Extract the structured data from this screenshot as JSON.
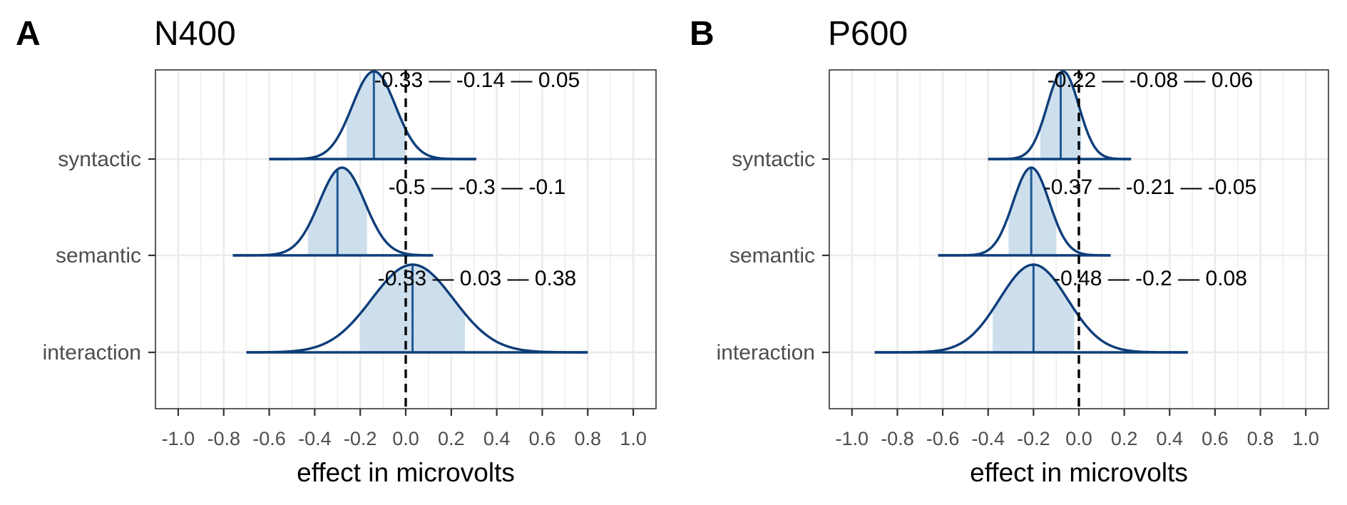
{
  "chart_data": [
    {
      "type": "area",
      "panel_label": "A",
      "title": "N400",
      "xlabel": "effect in microvolts",
      "ylabel": "",
      "xlim": [
        -1.1,
        1.1
      ],
      "x_ticks": [
        -1.0,
        -0.8,
        -0.6,
        -0.4,
        -0.2,
        0.0,
        0.2,
        0.4,
        0.6,
        0.8,
        1.0
      ],
      "x_tick_labels": [
        "-1.0",
        "-0.8",
        "-0.6",
        "-0.4",
        "-0.2",
        "0.0",
        "0.2",
        "0.4",
        "0.6",
        "0.8",
        "1.0"
      ],
      "categories": [
        "syntactic",
        "semantic",
        "interaction"
      ],
      "reference_line_x": 0,
      "grid": true,
      "series": [
        {
          "category": "syntactic",
          "median": -0.14,
          "ci_low": -0.26,
          "ci_high": 0.0,
          "range": [
            -0.6,
            0.31
          ],
          "sd": 0.095,
          "peak": -0.14,
          "annotation": "-0.33 — -0.14 — 0.05"
        },
        {
          "category": "semantic",
          "median": -0.3,
          "ci_low": -0.43,
          "ci_high": -0.17,
          "range": [
            -0.76,
            0.12
          ],
          "sd": 0.1,
          "peak": -0.28,
          "annotation": "-0.5 — -0.3 — -0.1"
        },
        {
          "category": "interaction",
          "median": 0.03,
          "ci_low": -0.2,
          "ci_high": 0.26,
          "range": [
            -0.7,
            0.8
          ],
          "sd": 0.18,
          "peak": 0.03,
          "annotation": "-0.33 — 0.03 — 0.38"
        }
      ]
    },
    {
      "type": "area",
      "panel_label": "B",
      "title": "P600",
      "xlabel": "effect in microvolts",
      "ylabel": "",
      "xlim": [
        -1.1,
        1.1
      ],
      "x_ticks": [
        -1.0,
        -0.8,
        -0.6,
        -0.4,
        -0.2,
        0.0,
        0.2,
        0.4,
        0.6,
        0.8,
        1.0
      ],
      "x_tick_labels": [
        "-1.0",
        "-0.8",
        "-0.6",
        "-0.4",
        "-0.2",
        "0.0",
        "0.2",
        "0.4",
        "0.6",
        "0.8",
        "1.0"
      ],
      "categories": [
        "syntactic",
        "semantic",
        "interaction"
      ],
      "reference_line_x": 0,
      "grid": true,
      "series": [
        {
          "category": "syntactic",
          "median": -0.08,
          "ci_low": -0.17,
          "ci_high": 0.01,
          "range": [
            -0.4,
            0.23
          ],
          "sd": 0.07,
          "peak": -0.07,
          "annotation": "-0.22 — -0.08 — 0.06"
        },
        {
          "category": "semantic",
          "median": -0.21,
          "ci_low": -0.31,
          "ci_high": -0.1,
          "range": [
            -0.62,
            0.14
          ],
          "sd": 0.08,
          "peak": -0.21,
          "annotation": "-0.37 — -0.21 — -0.05"
        },
        {
          "category": "interaction",
          "median": -0.2,
          "ci_low": -0.38,
          "ci_high": -0.02,
          "range": [
            -0.9,
            0.48
          ],
          "sd": 0.15,
          "peak": -0.2,
          "annotation": "-0.48 — -0.2 — 0.08"
        }
      ]
    }
  ]
}
